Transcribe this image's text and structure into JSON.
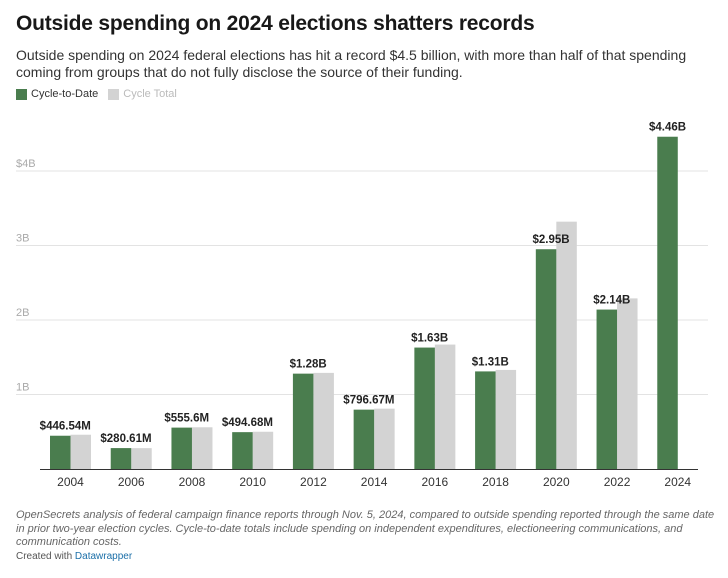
{
  "header": {
    "title": "Outside spending on 2024 elections shatters records",
    "subtitle": "Outside spending on 2024 federal elections has hit a record $4.5 billion, with more than half of that spending coming from groups that do not fully disclose the source of their funding."
  },
  "legend": {
    "items": [
      {
        "label": "Cycle-to-Date",
        "color": "#4a7d4e"
      },
      {
        "label": "Cycle Total",
        "color": "#d3d3d3"
      }
    ]
  },
  "chart_data": {
    "type": "bar",
    "title": "Outside spending on 2024 elections shatters records",
    "xlabel": "",
    "ylabel": "",
    "ylim": [
      0,
      4.5
    ],
    "y_ticks": [
      {
        "value": 1,
        "label": "1B"
      },
      {
        "value": 2,
        "label": "2B"
      },
      {
        "value": 3,
        "label": "3B"
      },
      {
        "value": 4,
        "label": "$4B"
      }
    ],
    "grid": true,
    "categories": [
      "2004",
      "2006",
      "2008",
      "2010",
      "2012",
      "2014",
      "2016",
      "2018",
      "2020",
      "2022",
      "2024"
    ],
    "series": [
      {
        "name": "Cycle-to-Date",
        "color": "#4a7d4e",
        "values": [
          0.44654,
          0.28061,
          0.5556,
          0.49468,
          1.28,
          0.79667,
          1.63,
          1.31,
          2.95,
          2.14,
          4.46
        ]
      },
      {
        "name": "Cycle Total",
        "color": "#d3d3d3",
        "values": [
          0.46,
          0.28,
          0.56,
          0.5,
          1.29,
          0.81,
          1.67,
          1.33,
          3.32,
          2.29,
          null
        ]
      }
    ],
    "data_labels": [
      "$446.54M",
      "$280.61M",
      "$555.6M",
      "$494.68M",
      "$1.28B",
      "$796.67M",
      "$1.63B",
      "$1.31B",
      "$2.95B",
      "$2.14B",
      "$4.46B"
    ]
  },
  "footer": {
    "notes": "OpenSecrets analysis of federal campaign finance reports through Nov. 5, 2024, compared to outside spending reported through the same date in prior two-year election cycles. Cycle-to-date totals include spending on independent expenditures, electioneering communications, and communication costs.",
    "credit_prefix": "Created with",
    "credit_link": "Datawrapper"
  }
}
